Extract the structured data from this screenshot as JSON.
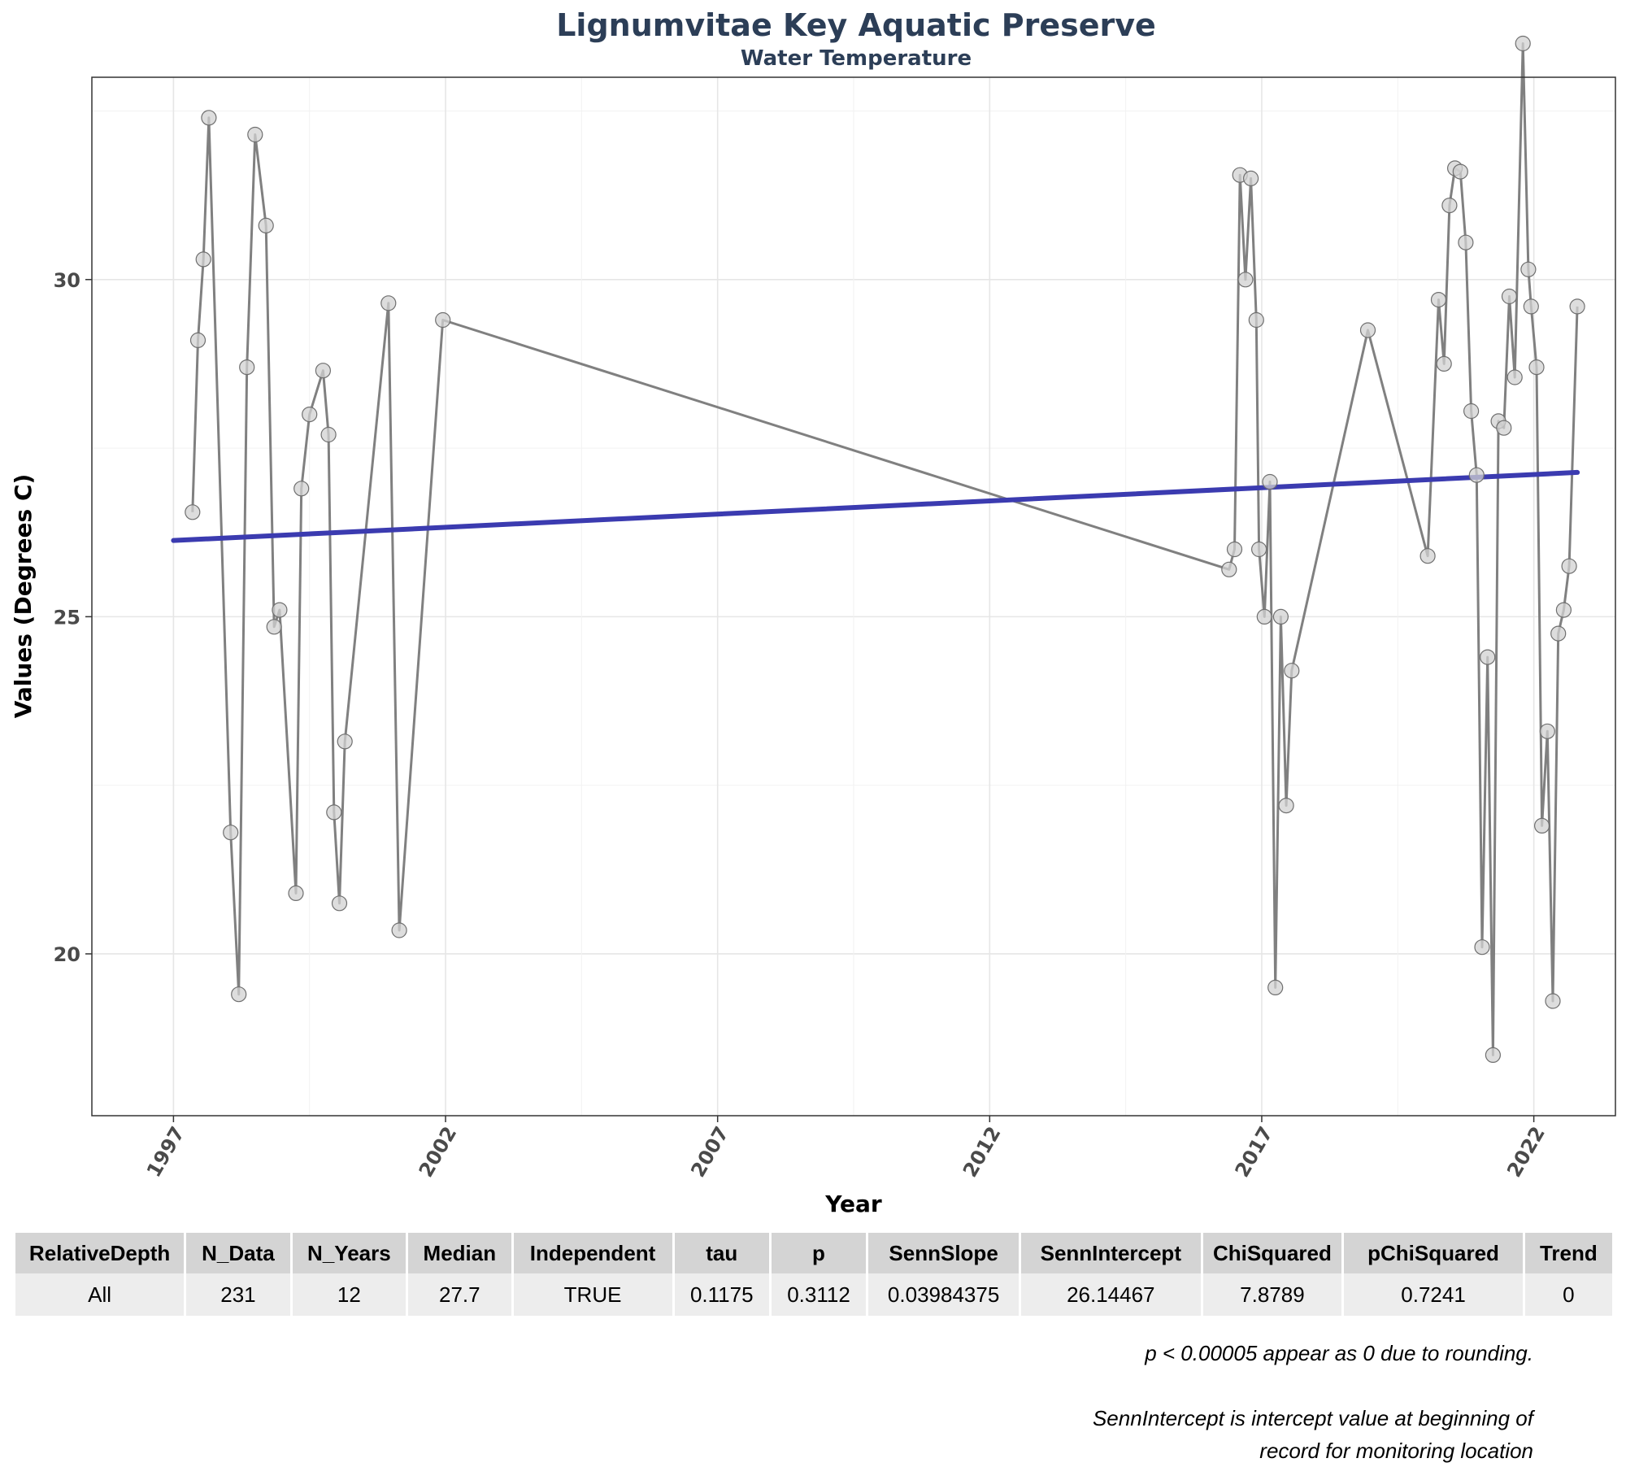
{
  "chart_data": {
    "type": "line",
    "title": "Lignumvitae Key Aquatic Preserve",
    "subtitle": "Water Temperature",
    "xlabel": "Year",
    "ylabel": "Values (Degrees C)",
    "xlim": [
      1995.5,
      2023.5
    ],
    "ylim": [
      17.6,
      33.0
    ],
    "x_ticks": [
      "1997",
      "2002",
      "2007",
      "2012",
      "2017",
      "2022"
    ],
    "y_ticks": [
      "20",
      "25",
      "30"
    ],
    "grid": true,
    "series": [
      {
        "color": "#808080",
        "points": [
          [
            1997.35,
            26.55
          ],
          [
            1997.45,
            29.1
          ],
          [
            1997.55,
            30.3
          ],
          [
            1997.65,
            32.4
          ],
          [
            1998.05,
            21.8
          ],
          [
            1998.2,
            19.4
          ],
          [
            1998.35,
            28.7
          ],
          [
            1998.5,
            32.15
          ],
          [
            1998.7,
            30.8
          ],
          [
            1998.85,
            24.85
          ],
          [
            1998.95,
            25.1
          ],
          [
            1999.25,
            20.9
          ],
          [
            1999.35,
            26.9
          ],
          [
            1999.5,
            28.0
          ],
          [
            1999.75,
            28.65
          ],
          [
            1999.85,
            27.7
          ],
          [
            1999.95,
            22.1
          ],
          [
            2000.05,
            20.75
          ],
          [
            2000.15,
            23.15
          ],
          [
            2000.95,
            29.65
          ],
          [
            2001.15,
            20.35
          ],
          [
            2001.95,
            29.4
          ],
          [
            2016.4,
            25.7
          ],
          [
            2016.5,
            26.0
          ],
          [
            2016.6,
            31.55
          ],
          [
            2016.7,
            30.0
          ],
          [
            2016.8,
            31.5
          ],
          [
            2016.9,
            29.4
          ],
          [
            2016.95,
            26.0
          ],
          [
            2017.05,
            25.0
          ],
          [
            2017.15,
            27.0
          ],
          [
            2017.25,
            19.5
          ],
          [
            2017.35,
            25.0
          ],
          [
            2017.45,
            22.2
          ],
          [
            2017.55,
            24.2
          ],
          [
            2018.95,
            29.25
          ],
          [
            2020.05,
            25.9
          ],
          [
            2020.25,
            29.7
          ],
          [
            2020.35,
            28.75
          ],
          [
            2020.45,
            31.1
          ],
          [
            2020.55,
            31.65
          ],
          [
            2020.65,
            31.6
          ],
          [
            2020.75,
            30.55
          ],
          [
            2020.85,
            28.05
          ],
          [
            2020.95,
            27.1
          ],
          [
            2021.05,
            20.1
          ],
          [
            2021.15,
            24.4
          ],
          [
            2021.25,
            18.5
          ],
          [
            2021.35,
            27.9
          ],
          [
            2021.45,
            27.8
          ],
          [
            2021.55,
            29.75
          ],
          [
            2021.65,
            28.55
          ],
          [
            2021.8,
            33.5
          ],
          [
            2021.9,
            30.15
          ],
          [
            2021.95,
            29.6
          ],
          [
            2022.05,
            28.7
          ],
          [
            2022.15,
            21.9
          ],
          [
            2022.25,
            23.3
          ],
          [
            2022.35,
            19.3
          ],
          [
            2022.45,
            24.75
          ],
          [
            2022.55,
            25.1
          ],
          [
            2022.65,
            25.75
          ],
          [
            2022.8,
            29.6
          ]
        ]
      },
      {
        "color": "#3b3bb0",
        "points": [
          [
            1997.0,
            26.13
          ],
          [
            2022.8,
            27.14
          ]
        ]
      }
    ]
  },
  "stats_table": {
    "headers": [
      "RelativeDepth",
      "N_Data",
      "N_Years",
      "Median",
      "Independent",
      "tau",
      "p",
      "SennSlope",
      "SennIntercept",
      "ChiSquared",
      "pChiSquared",
      "Trend"
    ],
    "row": [
      "All",
      "231",
      "12",
      "27.7",
      "TRUE",
      "0.1175",
      "0.3112",
      "0.03984375",
      "26.14467",
      "7.8789",
      "0.7241",
      "0"
    ]
  },
  "footnotes": {
    "note1": "p < 0.00005 appear as 0 due to rounding.",
    "note2_line1": "SennIntercept is intercept value at beginning of",
    "note2_line2": "record for monitoring location"
  }
}
